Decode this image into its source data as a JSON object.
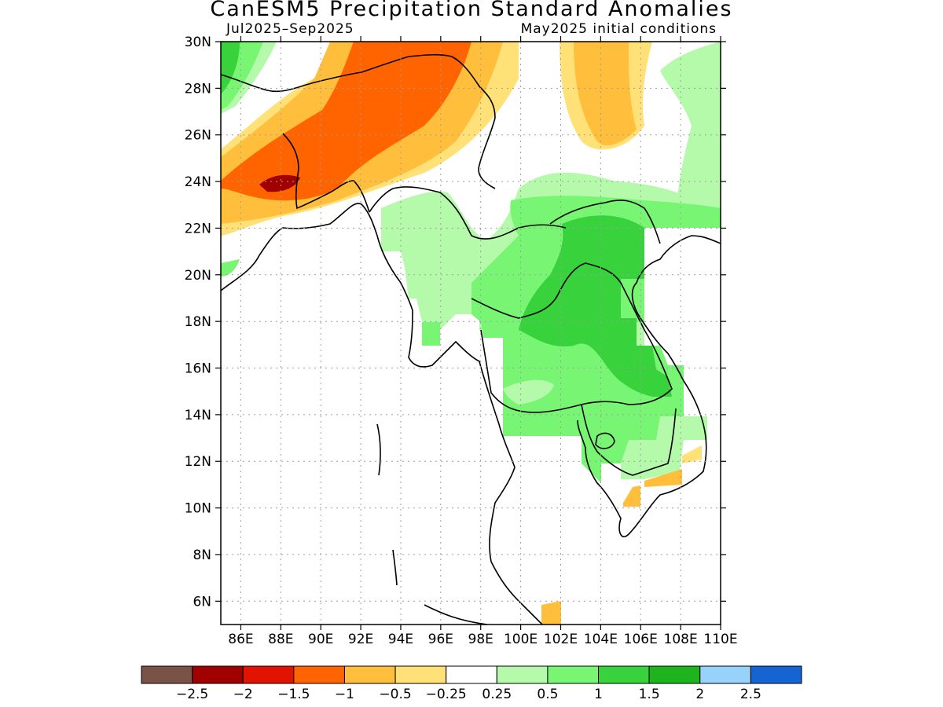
{
  "title": "CanESM5 Precipitation Standard Anomalies",
  "subtitle_left": "Jul2025–Sep2025",
  "subtitle_right": "May2025 initial conditions",
  "lat_labels": [
    "30N",
    "28N",
    "26N",
    "24N",
    "22N",
    "20N",
    "18N",
    "16N",
    "14N",
    "12N",
    "10N",
    "8N",
    "6N"
  ],
  "lon_labels": [
    "86E",
    "88E",
    "90E",
    "92E",
    "94E",
    "96E",
    "98E",
    "100E",
    "102E",
    "104E",
    "106E",
    "108E",
    "110E"
  ],
  "lat_values": [
    30,
    28,
    26,
    24,
    22,
    20,
    18,
    16,
    14,
    12,
    10,
    8,
    6
  ],
  "lon_values": [
    86,
    88,
    90,
    92,
    94,
    96,
    98,
    100,
    102,
    104,
    106,
    108,
    110
  ],
  "extent": {
    "lon_min": 85,
    "lon_max": 110,
    "lat_min": 5,
    "lat_max": 30
  },
  "colorbar": {
    "colors": [
      "#7a5248",
      "#a00000",
      "#e01400",
      "#ff6400",
      "#ffbe3c",
      "#ffe178",
      "#ffffff",
      "#b4faaa",
      "#78f573",
      "#37d23c",
      "#1eb41e",
      "#96d2fa",
      "#1464d2"
    ],
    "labels": [
      "−2.5",
      "−2",
      "−1.5",
      "−1",
      "−0.5",
      "−0.25",
      "0.25",
      "0.5",
      "1",
      "1.5",
      "2",
      "2.5"
    ]
  }
}
